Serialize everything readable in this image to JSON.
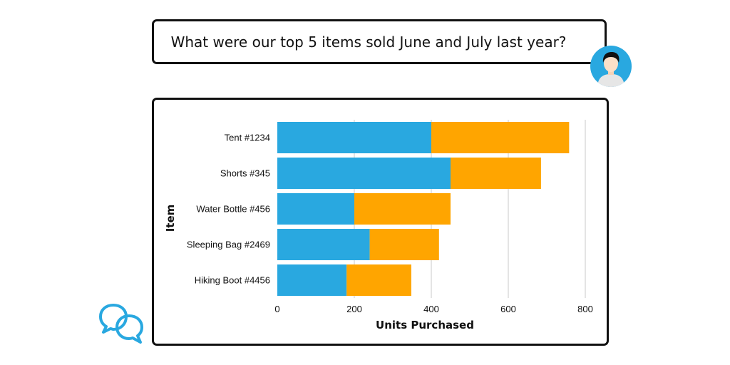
{
  "question": {
    "text": "What were our top 5 items sold June and July last year?"
  },
  "icons": {
    "avatar": "user-avatar-icon",
    "chat": "chat-bubbles-icon"
  },
  "colors": {
    "june": "#29a8e0",
    "july": "#ffa500",
    "accent": "#29a8e0"
  },
  "chart_data": {
    "type": "bar",
    "orientation": "horizontal",
    "stacked": true,
    "categories": [
      "Tent #1234",
      "Shorts #345",
      "Water Bottle #456",
      "Sleeping Bag #2469",
      "Hiking Boot #4456"
    ],
    "series": [
      {
        "values": [
          400,
          450,
          200,
          240,
          180
        ],
        "color": "#29a8e0"
      },
      {
        "values": [
          358,
          235,
          250,
          180,
          168
        ],
        "color": "#ffa500"
      }
    ],
    "xlabel": "Units Purchased",
    "ylabel": "Item",
    "xlim": [
      0,
      800
    ],
    "xticks": [
      0,
      200,
      400,
      600,
      800
    ],
    "grid": true,
    "legend": "none"
  }
}
